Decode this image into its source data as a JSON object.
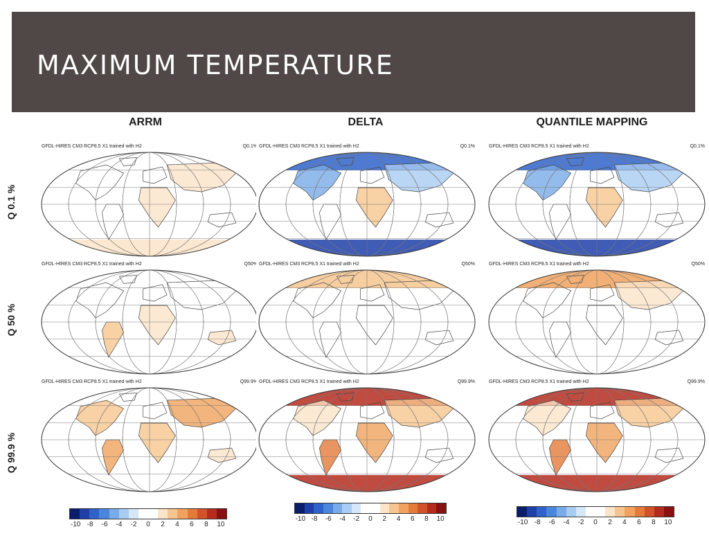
{
  "slide": {
    "title": "MAXIMUM TEMPERATURE",
    "colors": {
      "title_bar": "#504847",
      "title_text": "#ffffff"
    }
  },
  "columns": [
    "ARRM",
    "DELTA",
    "QUANTILE MAPPING"
  ],
  "rows": [
    "Q 0.1 %",
    "Q 50 %",
    "Q 99.9 %"
  ],
  "panels": [
    {
      "caption": "GFDL-HIRES CM3 RCP8.5 X1 trained with H2",
      "quantile": "Q0.1%",
      "method": "ARRM",
      "pattern": "arrm-low"
    },
    {
      "caption": "GFDL-HIRES CM3 RCP8.5 X1 trained with H2",
      "quantile": "Q0.1%",
      "method": "DELTA",
      "pattern": "cold-poles"
    },
    {
      "caption": "GFDL-HIRES CM3 RCP8.5 X1 trained with H2",
      "quantile": "Q0.1%",
      "method": "QUANTILE MAPPING",
      "pattern": "cold-poles"
    },
    {
      "caption": "GFDL-HIRES CM3 RCP8.5 X1 trained with H2",
      "quantile": "Q50%",
      "method": "ARRM",
      "pattern": "arrm-mid"
    },
    {
      "caption": "GFDL-HIRES CM3 RCP8.5 X1 trained with H2",
      "quantile": "Q50%",
      "method": "DELTA",
      "pattern": "mild"
    },
    {
      "caption": "GFDL-HIRES CM3 RCP8.5 X1 trained with H2",
      "quantile": "Q50%",
      "method": "QUANTILE MAPPING",
      "pattern": "mild-north"
    },
    {
      "caption": "GFDL-HIRES CM3 RCP8.5 X1 trained with H2",
      "quantile": "Q99.9%",
      "method": "ARRM",
      "pattern": "arrm-high"
    },
    {
      "caption": "GFDL-HIRES CM3 RCP8.5 X1 trained with H2",
      "quantile": "Q99.9%",
      "method": "DELTA",
      "pattern": "hot-poles"
    },
    {
      "caption": "GFDL-HIRES CM3 RCP8.5 X1 trained with H2",
      "quantile": "Q99.9%",
      "method": "QUANTILE MAPPING",
      "pattern": "hot-poles"
    }
  ],
  "colorbar": {
    "ticks": [
      "-10",
      "-8",
      "-6",
      "-4",
      "-2",
      "0",
      "2",
      "4",
      "6",
      "8",
      "10"
    ],
    "colors": [
      "#0a1d6b",
      "#1f3fa8",
      "#2f63c9",
      "#4a86db",
      "#78abe8",
      "#a9ccf2",
      "#d5e7f9",
      "#ffffff",
      "#ffffff",
      "#fbe4c8",
      "#f6c58f",
      "#f0a25e",
      "#e47b3a",
      "#d2522a",
      "#b52c1f",
      "#8a1111"
    ]
  }
}
